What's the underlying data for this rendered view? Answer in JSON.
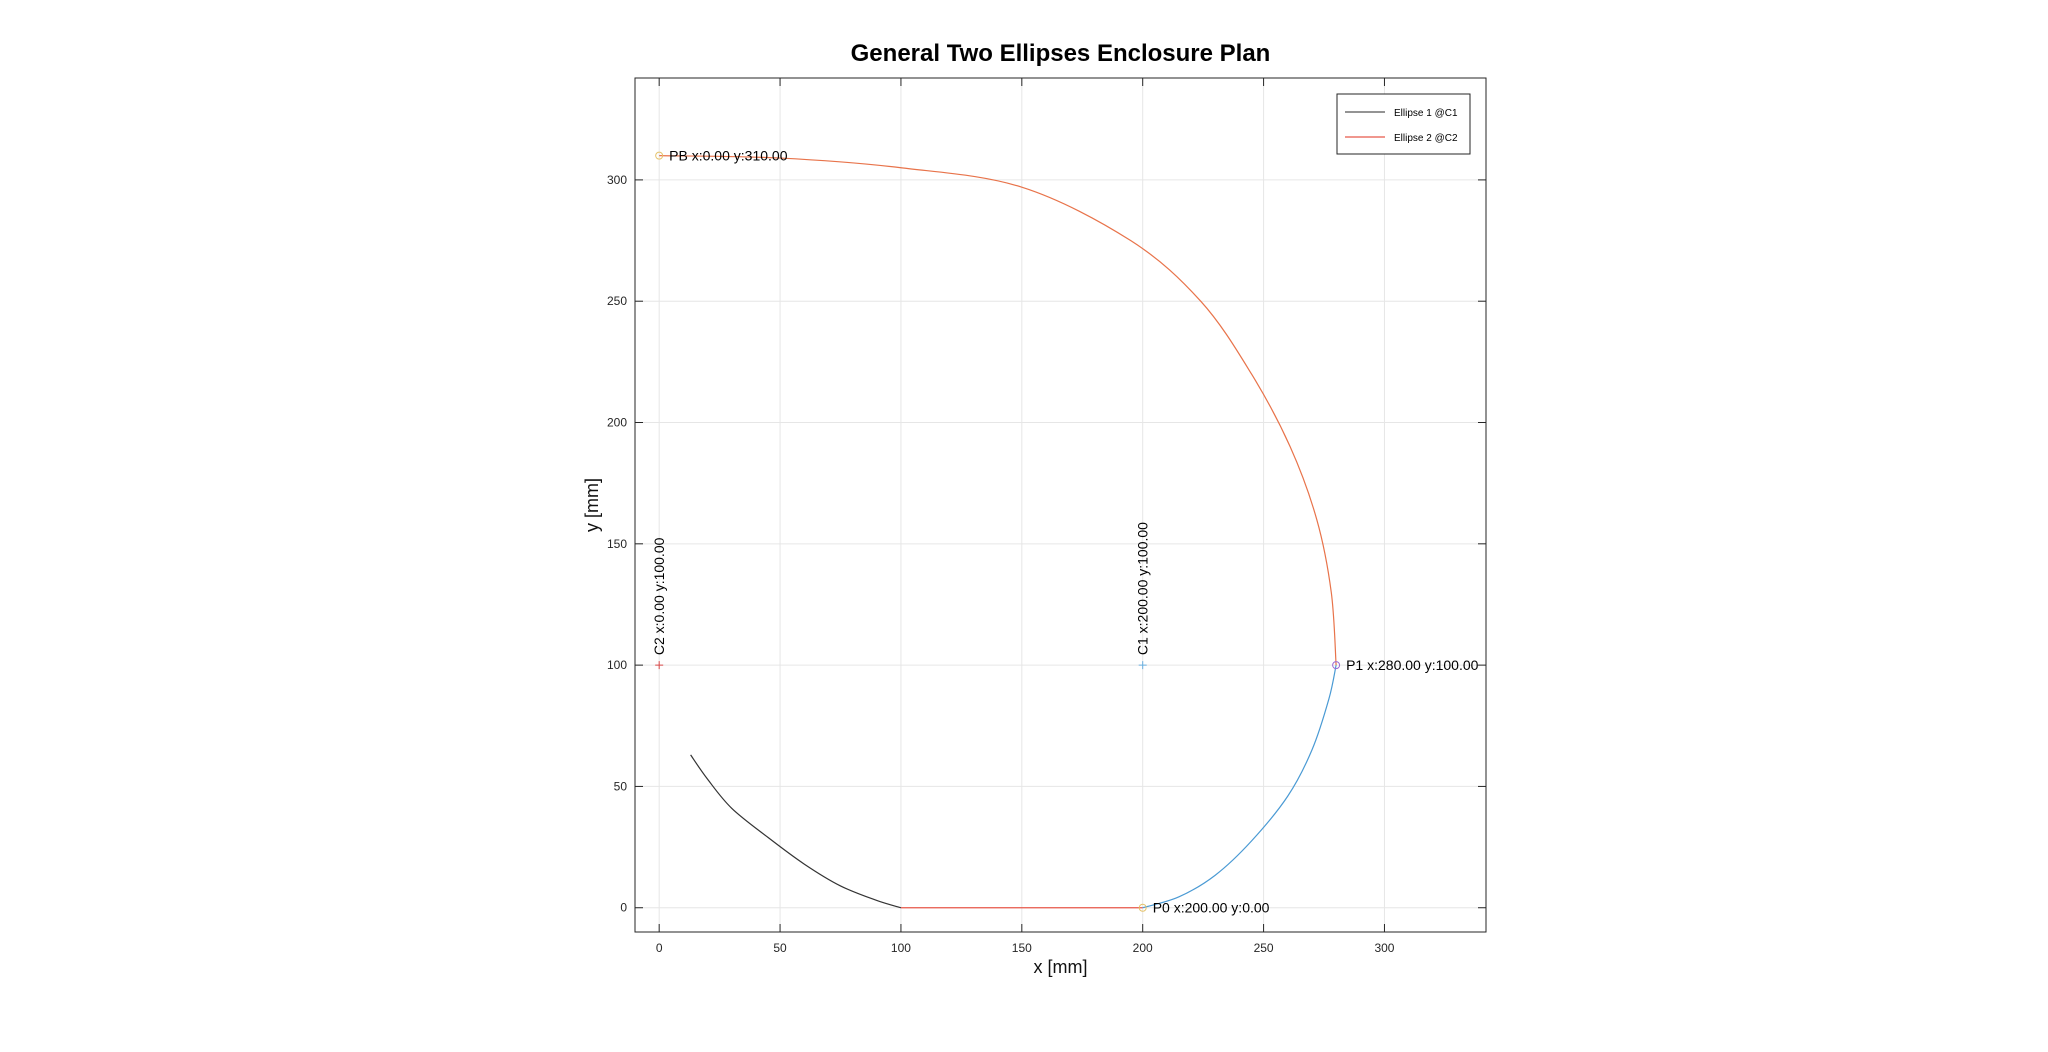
{
  "chart_data": {
    "type": "line",
    "title": "General Two Ellipses Enclosure Plan",
    "xlabel": "x [mm]",
    "ylabel": "y [mm]",
    "xlim": [
      -10,
      342
    ],
    "ylim": [
      -10,
      342
    ],
    "xticks": [
      0,
      50,
      100,
      150,
      200,
      250,
      300
    ],
    "yticks": [
      0,
      50,
      100,
      150,
      200,
      250,
      300
    ],
    "xtick_labels": [
      "0",
      "50",
      "100",
      "150",
      "200",
      "250",
      "300"
    ],
    "ytick_labels": [
      "0",
      "50",
      "100",
      "150",
      "200",
      "250",
      "300"
    ],
    "grid": true,
    "legend_position": "top-right",
    "legend": [
      {
        "label": "Ellipse 1 @C1",
        "color": "#555555"
      },
      {
        "label": "Ellipse 2 @C2",
        "color": "#e8594a"
      }
    ],
    "series": [
      {
        "role": "black-arc",
        "color": "#333333",
        "points": [
          [
            13,
            63
          ],
          [
            20,
            53
          ],
          [
            30,
            41
          ],
          [
            45,
            29
          ],
          [
            60,
            18
          ],
          [
            75,
            9
          ],
          [
            90,
            3
          ],
          [
            100,
            0
          ]
        ]
      },
      {
        "role": "red-flat",
        "color": "#e8594a",
        "points": [
          [
            100,
            0
          ],
          [
            200,
            0
          ]
        ]
      },
      {
        "role": "blue-arc",
        "color": "#4a9ad4",
        "points": [
          [
            200,
            0
          ],
          [
            215,
            4.5
          ],
          [
            230,
            13.4
          ],
          [
            245,
            27.5
          ],
          [
            260,
            46.0
          ],
          [
            270,
            65.0
          ],
          [
            277,
            86.0
          ],
          [
            280,
            100
          ]
        ]
      },
      {
        "role": "orange-arc",
        "color": "#e8734a",
        "points": [
          [
            280,
            100
          ],
          [
            278,
            130
          ],
          [
            272,
            160
          ],
          [
            261,
            190
          ],
          [
            245,
            220
          ],
          [
            224,
            250
          ],
          [
            195,
            275
          ],
          [
            150,
            297
          ],
          [
            100,
            305
          ],
          [
            50,
            309
          ],
          [
            0,
            310
          ]
        ]
      }
    ],
    "markers": [
      {
        "name": "PB",
        "x": 0,
        "y": 310,
        "symbol": "circle",
        "color": "#e5c36b",
        "label": "PB x:0.00 y:310.00",
        "label_side": "right"
      },
      {
        "name": "C2",
        "x": 0,
        "y": 100,
        "symbol": "plus",
        "color": "#d94a4a",
        "label": "C2 x:0.00 y:100.00",
        "label_side": "up"
      },
      {
        "name": "C1",
        "x": 200,
        "y": 100,
        "symbol": "plus",
        "color": "#6ab0e0",
        "label": "C1 x:200.00 y:100.00",
        "label_side": "up"
      },
      {
        "name": "P1",
        "x": 280,
        "y": 100,
        "symbol": "circle",
        "color": "#9b6bd4",
        "label": "P1 x:280.00 y:100.00",
        "label_side": "right"
      },
      {
        "name": "P0",
        "x": 200,
        "y": 0,
        "symbol": "circle",
        "color": "#e5c36b",
        "label": "P0 x:200.00 y:0.00",
        "label_side": "right"
      }
    ]
  }
}
